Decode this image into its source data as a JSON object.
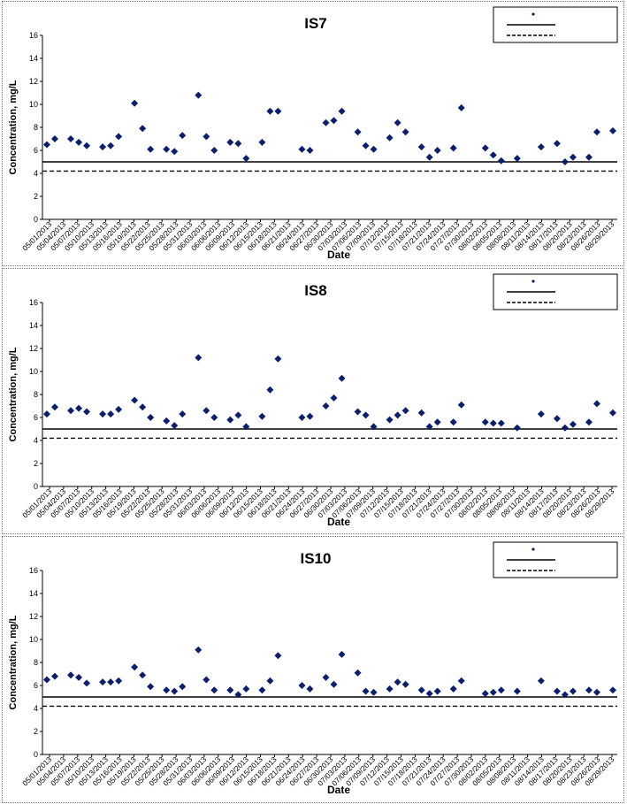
{
  "colors": {
    "marker": "#0b1f6e",
    "line": "#000000",
    "background": "#ffffff"
  },
  "chart_data": [
    {
      "type": "scatter",
      "title": "IS7",
      "xlabel": "Date",
      "ylabel": "Concentration, mg/L",
      "ylim": [
        0,
        16
      ],
      "yticks": [
        "0",
        "2",
        "4",
        "6",
        "8",
        "10",
        "12",
        "14",
        "16"
      ],
      "xticks": [
        "05/01/2013",
        "05/04/2013",
        "05/07/2013",
        "05/10/2013",
        "05/13/2013",
        "05/16/2013",
        "05/19/2013",
        "05/22/2013",
        "05/25/2013",
        "05/28/2013",
        "05/31/2013",
        "06/03/2013",
        "06/06/2013",
        "06/09/2013",
        "06/12/2013",
        "06/15/2013",
        "06/18/2013",
        "06/21/2013",
        "06/24/2013",
        "06/27/2013",
        "06/30/2013",
        "07/03/2013",
        "07/06/2013",
        "07/09/2013",
        "07/12/2013",
        "07/15/2013",
        "07/18/2013",
        "07/21/2013",
        "07/24/2013",
        "07/27/2013",
        "07/30/2013",
        "08/02/2013",
        "08/05/2013",
        "08/08/2013",
        "08/11/2013",
        "08/14/2013",
        "08/17/2013",
        "08/20/2013",
        "08/23/2013",
        "08/26/2013",
        "08/29/2013"
      ],
      "hlines": [
        {
          "value": 5.0,
          "style": "solid"
        },
        {
          "value": 4.2,
          "style": "dashed"
        }
      ],
      "legend_position": "top-right",
      "points": [
        [
          0,
          6.5
        ],
        [
          1,
          7.0
        ],
        [
          3,
          7.0
        ],
        [
          4,
          6.7
        ],
        [
          5,
          6.4
        ],
        [
          7,
          6.3
        ],
        [
          8,
          6.4
        ],
        [
          9,
          7.2
        ],
        [
          11,
          10.1
        ],
        [
          12,
          7.9
        ],
        [
          13,
          6.1
        ],
        [
          15,
          6.1
        ],
        [
          16,
          5.9
        ],
        [
          17,
          7.3
        ],
        [
          19,
          10.8
        ],
        [
          20,
          7.2
        ],
        [
          21,
          6.0
        ],
        [
          23,
          6.7
        ],
        [
          24,
          6.6
        ],
        [
          25,
          5.3
        ],
        [
          27,
          6.7
        ],
        [
          28,
          9.4
        ],
        [
          29,
          9.4
        ],
        [
          32,
          6.1
        ],
        [
          33,
          6.0
        ],
        [
          35,
          8.4
        ],
        [
          36,
          8.6
        ],
        [
          37,
          9.4
        ],
        [
          39,
          7.6
        ],
        [
          40,
          6.4
        ],
        [
          41,
          6.1
        ],
        [
          43,
          7.1
        ],
        [
          44,
          8.4
        ],
        [
          45,
          7.6
        ],
        [
          47,
          6.3
        ],
        [
          48,
          5.4
        ],
        [
          49,
          6.0
        ],
        [
          51,
          6.2
        ],
        [
          52,
          9.7
        ],
        [
          55,
          6.2
        ],
        [
          56,
          5.6
        ],
        [
          57,
          5.1
        ],
        [
          59,
          5.3
        ],
        [
          62,
          6.3
        ],
        [
          64,
          6.6
        ],
        [
          65,
          5.0
        ],
        [
          66,
          5.4
        ],
        [
          68,
          5.4
        ],
        [
          69,
          7.6
        ],
        [
          71,
          7.7
        ]
      ]
    },
    {
      "type": "scatter",
      "title": "IS8",
      "xlabel": "Date",
      "ylabel": "Concentration, mg/L",
      "ylim": [
        0,
        16
      ],
      "yticks": [
        "0",
        "2",
        "4",
        "6",
        "8",
        "10",
        "12",
        "14",
        "16"
      ],
      "xticks": [
        "05/01/2013",
        "05/04/2013",
        "05/07/2013",
        "05/10/2013",
        "05/13/2013",
        "05/16/2013",
        "05/19/2013",
        "05/22/2013",
        "05/25/2013",
        "05/28/2013",
        "05/31/2013",
        "06/03/2013",
        "06/06/2013",
        "06/09/2013",
        "06/12/2013",
        "06/15/2013",
        "06/18/2013",
        "06/21/2013",
        "06/24/2013",
        "06/27/2013",
        "06/30/2013",
        "07/03/2013",
        "07/06/2013",
        "07/09/2013",
        "07/12/2013",
        "07/15/2013",
        "07/18/2013",
        "07/21/2013",
        "07/24/2013",
        "07/27/2013",
        "07/30/2013",
        "08/02/2013",
        "08/05/2013",
        "08/08/2013",
        "08/11/2013",
        "08/14/2013",
        "08/17/2013",
        "08/20/2013",
        "08/23/2013",
        "08/26/2013",
        "08/29/2013"
      ],
      "hlines": [
        {
          "value": 5.0,
          "style": "solid"
        },
        {
          "value": 4.2,
          "style": "dashed"
        }
      ],
      "legend_position": "top-right",
      "points": [
        [
          0,
          6.3
        ],
        [
          1,
          6.9
        ],
        [
          3,
          6.6
        ],
        [
          4,
          6.8
        ],
        [
          5,
          6.5
        ],
        [
          7,
          6.3
        ],
        [
          8,
          6.3
        ],
        [
          9,
          6.7
        ],
        [
          11,
          7.5
        ],
        [
          12,
          6.9
        ],
        [
          13,
          6.0
        ],
        [
          15,
          5.7
        ],
        [
          16,
          5.3
        ],
        [
          17,
          6.3
        ],
        [
          19,
          11.2
        ],
        [
          20,
          6.6
        ],
        [
          21,
          6.0
        ],
        [
          23,
          5.8
        ],
        [
          24,
          6.2
        ],
        [
          25,
          5.2
        ],
        [
          27,
          6.1
        ],
        [
          28,
          8.4
        ],
        [
          29,
          11.1
        ],
        [
          32,
          6.0
        ],
        [
          33,
          6.1
        ],
        [
          35,
          7.0
        ],
        [
          36,
          7.7
        ],
        [
          37,
          9.4
        ],
        [
          39,
          6.5
        ],
        [
          40,
          6.2
        ],
        [
          41,
          5.2
        ],
        [
          43,
          5.8
        ],
        [
          44,
          6.2
        ],
        [
          45,
          6.6
        ],
        [
          47,
          6.4
        ],
        [
          48,
          5.2
        ],
        [
          49,
          5.6
        ],
        [
          51,
          5.6
        ],
        [
          52,
          7.1
        ],
        [
          55,
          5.6
        ],
        [
          56,
          5.5
        ],
        [
          57,
          5.5
        ],
        [
          59,
          5.1
        ],
        [
          62,
          6.3
        ],
        [
          64,
          5.9
        ],
        [
          65,
          5.1
        ],
        [
          66,
          5.4
        ],
        [
          68,
          5.6
        ],
        [
          69,
          7.2
        ],
        [
          71,
          6.4
        ]
      ]
    },
    {
      "type": "scatter",
      "title": "IS10",
      "xlabel": "Date",
      "ylabel": "Concentration, mg/L",
      "ylim": [
        0,
        16
      ],
      "yticks": [
        "0",
        "2",
        "4",
        "6",
        "8",
        "10",
        "12",
        "14",
        "16"
      ],
      "xticks": [
        "05/01/2013",
        "05/04/2013",
        "05/07/2013",
        "05/10/2013",
        "05/13/2013",
        "05/16/2013",
        "05/19/2013",
        "05/22/2013",
        "05/25/2013",
        "05/28/2013",
        "05/31/2013",
        "06/03/2013",
        "06/06/2013",
        "06/09/2013",
        "06/12/2013",
        "06/15/2013",
        "06/18/2013",
        "06/21/2013",
        "06/24/2013",
        "06/27/2013",
        "06/30/2013",
        "07/03/2013",
        "07/06/2013",
        "07/09/2013",
        "07/12/2013",
        "07/15/2013",
        "07/18/2013",
        "07/21/2013",
        "07/24/2013",
        "07/27/2013",
        "07/30/2013",
        "08/02/2013",
        "08/05/2013",
        "08/08/2013",
        "08/11/2013",
        "08/14/2013",
        "08/17/2013",
        "08/20/2013",
        "08/23/2013",
        "08/26/2013",
        "08/29/2013"
      ],
      "hlines": [
        {
          "value": 5.0,
          "style": "solid"
        },
        {
          "value": 4.2,
          "style": "dashed"
        }
      ],
      "legend_position": "top-right",
      "points": [
        [
          0,
          6.5
        ],
        [
          1,
          6.8
        ],
        [
          3,
          6.9
        ],
        [
          4,
          6.7
        ],
        [
          5,
          6.2
        ],
        [
          7,
          6.3
        ],
        [
          8,
          6.3
        ],
        [
          9,
          6.4
        ],
        [
          11,
          7.6
        ],
        [
          12,
          6.9
        ],
        [
          13,
          5.9
        ],
        [
          15,
          5.6
        ],
        [
          16,
          5.5
        ],
        [
          17,
          5.9
        ],
        [
          19,
          9.1
        ],
        [
          20,
          6.5
        ],
        [
          21,
          5.6
        ],
        [
          23,
          5.6
        ],
        [
          24,
          5.2
        ],
        [
          25,
          5.7
        ],
        [
          27,
          5.6
        ],
        [
          28,
          6.4
        ],
        [
          29,
          8.6
        ],
        [
          32,
          6.0
        ],
        [
          33,
          5.7
        ],
        [
          35,
          6.7
        ],
        [
          36,
          6.1
        ],
        [
          37,
          8.7
        ],
        [
          39,
          7.1
        ],
        [
          40,
          5.5
        ],
        [
          41,
          5.4
        ],
        [
          43,
          5.7
        ],
        [
          44,
          6.3
        ],
        [
          45,
          6.1
        ],
        [
          47,
          5.6
        ],
        [
          48,
          5.3
        ],
        [
          49,
          5.5
        ],
        [
          51,
          5.7
        ],
        [
          52,
          6.4
        ],
        [
          55,
          5.3
        ],
        [
          56,
          5.4
        ],
        [
          57,
          5.6
        ],
        [
          59,
          5.5
        ],
        [
          62,
          6.4
        ],
        [
          64,
          5.5
        ],
        [
          65,
          5.2
        ],
        [
          66,
          5.5
        ],
        [
          68,
          5.6
        ],
        [
          69,
          5.4
        ],
        [
          71,
          5.6
        ]
      ]
    }
  ]
}
